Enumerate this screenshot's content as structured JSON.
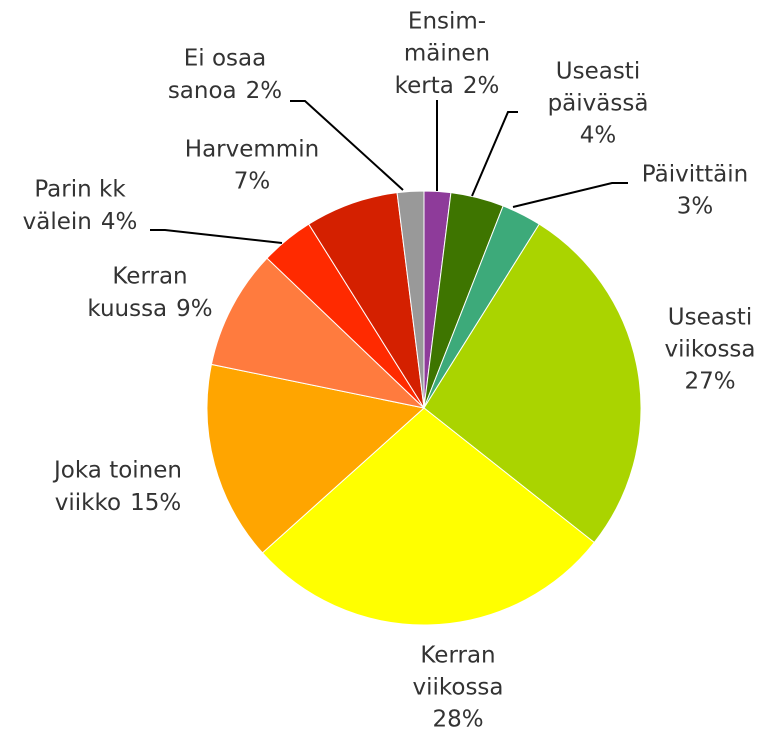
{
  "chart_data": {
    "type": "pie",
    "categories": [
      [
        "Ensim-",
        "mäinen",
        "kerta"
      ],
      [
        "Useasti",
        "päivässä"
      ],
      [
        "Päivittäin"
      ],
      [
        "Useasti",
        "viikossa"
      ],
      [
        "Kerran",
        "viikossa"
      ],
      [
        "Joka toinen",
        "viikko"
      ],
      [
        "Kerran",
        "kuussa"
      ],
      [
        "Parin kk",
        "välein"
      ],
      [
        "Harvemmin"
      ],
      [
        "Ei osaa",
        "sanoa"
      ]
    ],
    "values": [
      2,
      4,
      3,
      27,
      28,
      15,
      9,
      4,
      7,
      2
    ],
    "value_labels": [
      "2%",
      "4%",
      "3%",
      "27%",
      "28%",
      "15%",
      "9%",
      "4%",
      "7%",
      "2%"
    ],
    "colors": [
      "#8e3b9a",
      "#3e7500",
      "#3daa7a",
      "#aad400",
      "#ffff00",
      "#ffa500",
      "#ff7b3e",
      "#ff2a00",
      "#d42000",
      "#999999"
    ]
  }
}
